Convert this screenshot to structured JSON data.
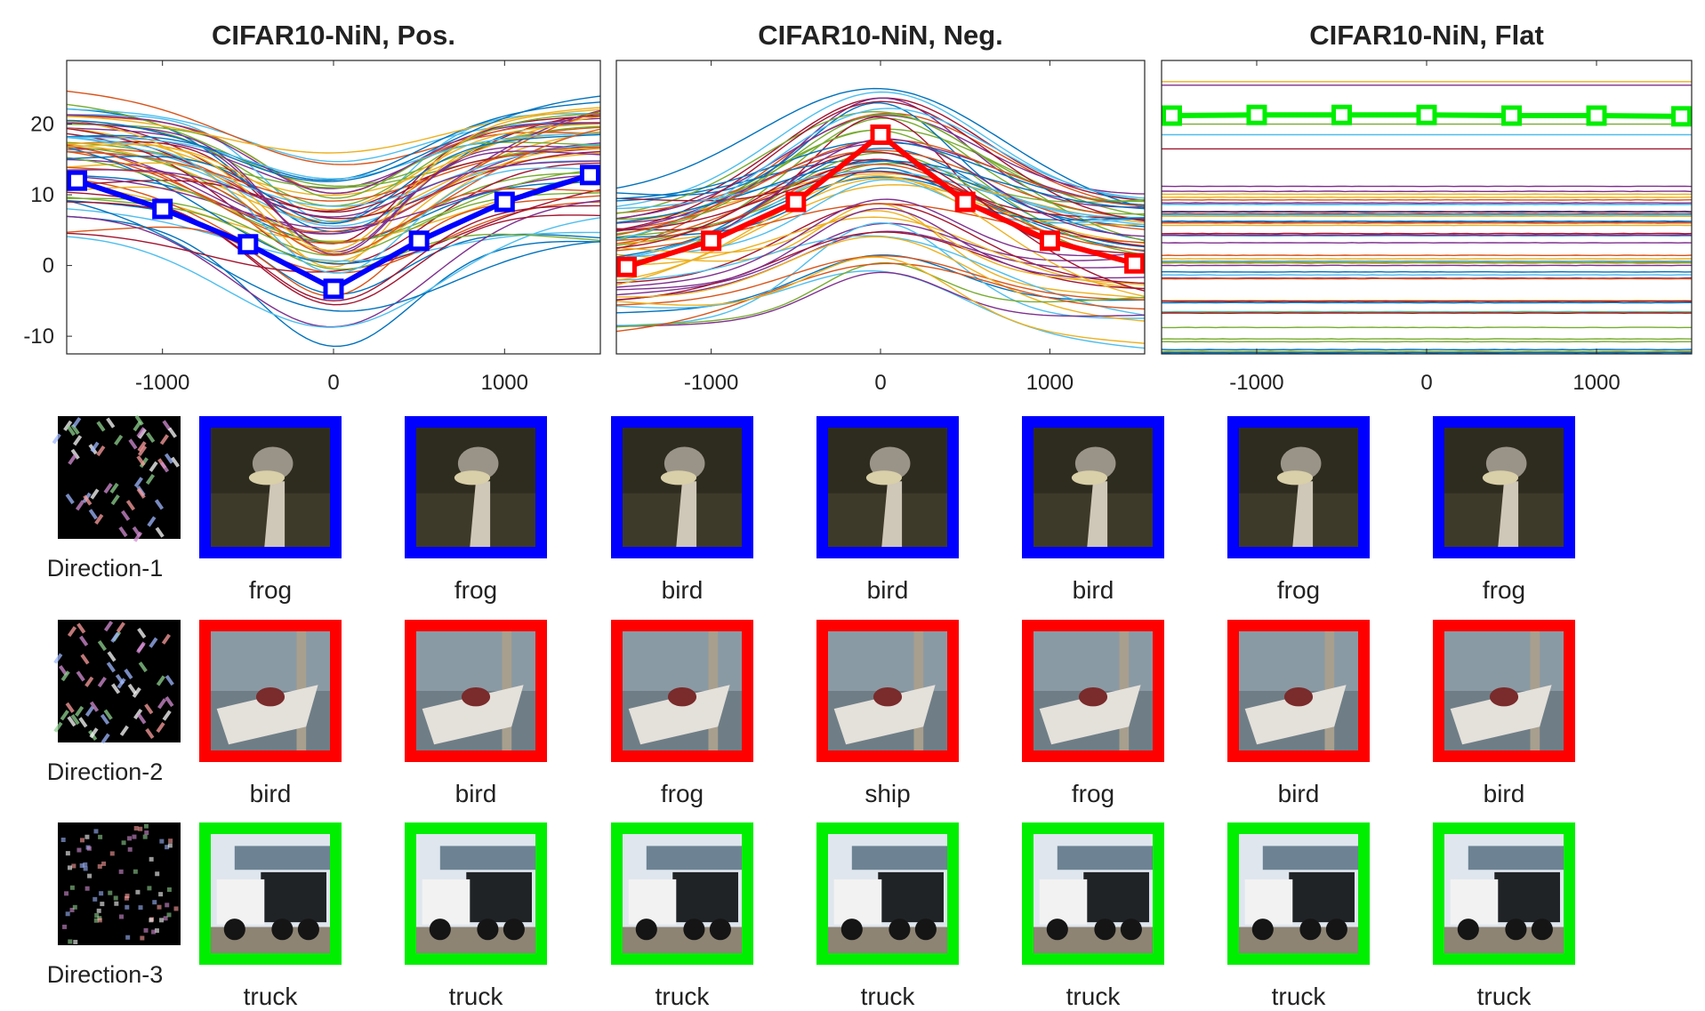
{
  "chart_data": [
    {
      "type": "line",
      "title": "CIFAR10-NiN, Pos.",
      "xlim": [
        -1560,
        1560
      ],
      "ylim": [
        -12.5,
        29
      ],
      "xticks": [
        -1000,
        0,
        1000
      ],
      "yticks": [
        -10,
        0,
        10,
        20
      ],
      "xtick_labels": [
        "-1000",
        "0",
        "1000"
      ],
      "ytick_labels": [
        "-10",
        "0",
        "10",
        "20"
      ],
      "grid": false,
      "highlight": {
        "color": "#0000ff",
        "x": [
          -1500,
          -1000,
          -500,
          0,
          500,
          1000,
          1500
        ],
        "y": [
          12,
          8,
          3,
          -3.3,
          3.5,
          9,
          12.8
        ]
      },
      "background_curves": {
        "count": 60,
        "shape": "valley",
        "y_center": 14,
        "depth": 13,
        "spread": 4
      }
    },
    {
      "type": "line",
      "title": "CIFAR10-NiN, Neg.",
      "xlim": [
        -1560,
        1560
      ],
      "ylim": [
        -12.5,
        29
      ],
      "xticks": [
        -1000,
        0,
        1000
      ],
      "xtick_labels": [
        "-1000",
        "0",
        "1000"
      ],
      "grid": false,
      "highlight": {
        "color": "#ff0000",
        "x": [
          -1500,
          -1000,
          -500,
          0,
          500,
          1000,
          1500
        ],
        "y": [
          -0.2,
          3.5,
          9,
          18.5,
          9,
          3.5,
          0.3
        ]
      },
      "background_curves": {
        "count": 60,
        "shape": "peak",
        "y_center": 0,
        "depth": 14,
        "spread": 4
      }
    },
    {
      "type": "line",
      "title": "CIFAR10-NiN, Flat",
      "xlim": [
        -1560,
        1560
      ],
      "ylim": [
        -12.5,
        29
      ],
      "xticks": [
        -1000,
        0,
        1000
      ],
      "xtick_labels": [
        "-1000",
        "0",
        "1000"
      ],
      "grid": false,
      "highlight": {
        "color": "#00ee00",
        "x": [
          -1500,
          -1000,
          -500,
          0,
          500,
          1000,
          1500
        ],
        "y": [
          21.2,
          21.3,
          21.3,
          21.3,
          21.2,
          21.2,
          21.1
        ]
      },
      "background_curves": {
        "count": 60,
        "shape": "flat",
        "y_center": -2,
        "depth": 0,
        "spread": 6
      }
    }
  ],
  "directions": [
    {
      "label": "Direction-1",
      "color": "#0000ff",
      "image": "ostrich",
      "predictions": [
        "frog",
        "frog",
        "bird",
        "bird",
        "bird",
        "frog",
        "frog"
      ]
    },
    {
      "label": "Direction-2",
      "color": "#ff0000",
      "image": "boat-with-people",
      "predictions": [
        "bird",
        "bird",
        "frog",
        "ship",
        "frog",
        "bird",
        "bird"
      ]
    },
    {
      "label": "Direction-3",
      "color": "#00ee00",
      "image": "truck",
      "predictions": [
        "truck",
        "truck",
        "truck",
        "truck",
        "truck",
        "truck",
        "truck"
      ]
    }
  ]
}
